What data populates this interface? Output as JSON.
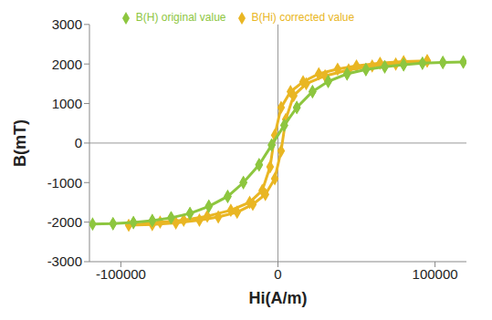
{
  "chart_data": {
    "type": "scatter",
    "x_label": "Hi(A/m)",
    "y_label": "B(mT)",
    "xlim": [
      -120000,
      120000
    ],
    "xticks": [
      -100000,
      0,
      100000
    ],
    "ylim": [
      -3000,
      3000
    ],
    "yticks": [
      -3000,
      -2000,
      -1000,
      0,
      1000,
      2000,
      3000
    ],
    "grid": false,
    "legend": "top",
    "marker": "diamond",
    "line_style": "solid",
    "series": [
      {
        "name": "B(Hi) corrected value",
        "color": "#e9b623",
        "x": [
          95000,
          80000,
          65000,
          50000,
          38000,
          26000,
          16000,
          8000,
          2000,
          -2000,
          -5000,
          -10000,
          -18000,
          -30000,
          -45000,
          -60000,
          -75000,
          -95000,
          -80000,
          -65000,
          -50000,
          -38000,
          -26000,
          -16000,
          -8000,
          -2000,
          2000,
          5000,
          10000,
          18000,
          30000,
          45000,
          60000,
          75000,
          95000
        ],
        "values": [
          2080,
          2060,
          2020,
          1950,
          1870,
          1750,
          1550,
          1300,
          900,
          200,
          -600,
          -1200,
          -1500,
          -1700,
          -1850,
          -1950,
          -2000,
          -2080,
          -2060,
          -2020,
          -1950,
          -1870,
          -1750,
          -1550,
          -1300,
          -900,
          -200,
          600,
          1200,
          1500,
          1700,
          1850,
          1950,
          2000,
          2080
        ]
      },
      {
        "name": "B(H) original value",
        "color": "#8dc63f",
        "x": [
          118000,
          105000,
          92000,
          80000,
          68000,
          56000,
          44000,
          32000,
          22000,
          12000,
          4000,
          -4000,
          -12000,
          -22000,
          -32000,
          -44000,
          -56000,
          -68000,
          -80000,
          -92000,
          -105000,
          -118000,
          -105000,
          -92000,
          -80000,
          -68000,
          -56000,
          -44000,
          -32000,
          -22000,
          -12000,
          -4000,
          4000,
          12000,
          22000,
          32000,
          44000,
          56000,
          68000,
          80000,
          92000,
          105000,
          118000
        ],
        "values": [
          2050,
          2040,
          2020,
          1980,
          1930,
          1860,
          1750,
          1560,
          1300,
          900,
          450,
          -50,
          -550,
          -1000,
          -1350,
          -1600,
          -1780,
          -1890,
          -1960,
          -2010,
          -2040,
          -2050,
          -2040,
          -2010,
          -1960,
          -1890,
          -1780,
          -1600,
          -1350,
          -1000,
          -550,
          -50,
          450,
          900,
          1300,
          1560,
          1750,
          1860,
          1930,
          1980,
          2020,
          2040,
          2050
        ]
      }
    ]
  }
}
